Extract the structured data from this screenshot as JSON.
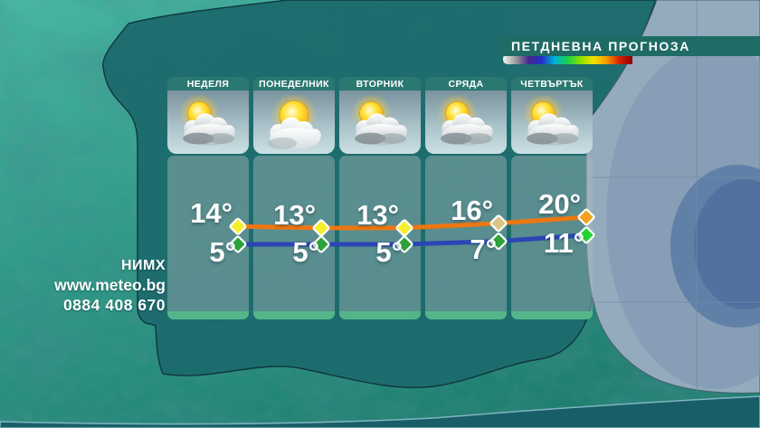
{
  "title": "ПЕТДНЕВНА ПРОГНОЗА",
  "colorbar": {
    "stops": [
      "#f5f5f5",
      "#9a9a9a",
      "#46248c",
      "#2230c8",
      "#00b4d8",
      "#18d24b",
      "#8ee000",
      "#f2e200",
      "#f59b00",
      "#d62000",
      "#8c0000"
    ]
  },
  "days": [
    {
      "name": "НЕДЕЛЯ",
      "icon": "partly-cloudy",
      "high": "14°",
      "low": "5°"
    },
    {
      "name": "ПОНЕДЕЛНИК",
      "icon": "mostly-sunny",
      "high": "13°",
      "low": "5°"
    },
    {
      "name": "ВТОРНИК",
      "icon": "partly-cloudy",
      "high": "13°",
      "low": "5°"
    },
    {
      "name": "СРЯДА",
      "icon": "partly-cloudy",
      "high": "16°",
      "low": "7°"
    },
    {
      "name": "ЧЕТВЪРТЪК",
      "icon": "partly-cloudy",
      "high": "20°",
      "low": "11°"
    }
  ],
  "chart_data": {
    "type": "line",
    "categories": [
      "НЕДЕЛЯ",
      "ПОНЕДЕЛНИК",
      "ВТОРНИК",
      "СРЯДА",
      "ЧЕТВЪРТЪК"
    ],
    "unit": "°",
    "grid": "off",
    "legend": "none",
    "series": [
      {
        "name": "daytime-high",
        "values": [
          14,
          13,
          13,
          16,
          20
        ],
        "line_color": "#ed7712",
        "marker_colors": [
          "#f5ee2a",
          "#f5ee2a",
          "#f5ee2a",
          "#d9c683",
          "#f5a021"
        ]
      },
      {
        "name": "overnight-low",
        "values": [
          5,
          5,
          5,
          7,
          11
        ],
        "line_color": "#2b45b5",
        "marker_colors": [
          "#2da23a",
          "#2da23a",
          "#2da23a",
          "#2da23a",
          "#25d233"
        ]
      }
    ]
  },
  "footer": {
    "org": "НИМХ",
    "website": "www.meteo.bg",
    "phone": "0884 408 670"
  },
  "colors": {
    "banner": "#1f6b66",
    "day_header": "#2b7872",
    "panel_cap": "#55b58a",
    "high_line": "#ed7712",
    "low_line": "#2b45b5"
  }
}
